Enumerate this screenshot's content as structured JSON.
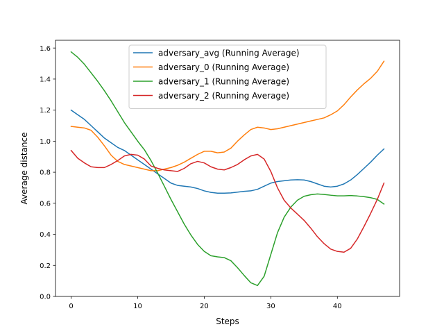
{
  "chart_data": {
    "type": "line",
    "title": "",
    "xlabel": "Steps",
    "ylabel": "Average distance",
    "xlim": [
      -2.35,
      49.35
    ],
    "ylim": [
      0.0,
      1.65
    ],
    "xticks": [
      0,
      10,
      20,
      30,
      40
    ],
    "yticks": [
      0.0,
      0.2,
      0.4,
      0.6,
      0.8,
      1.0,
      1.2,
      1.4,
      1.6
    ],
    "xtick_labels": [
      "0",
      "10",
      "20",
      "30",
      "40"
    ],
    "ytick_labels": [
      "0.0",
      "0.2",
      "0.4",
      "0.6",
      "0.8",
      "1.0",
      "1.2",
      "1.4",
      "1.6"
    ],
    "grid": false,
    "legend_position": "upper center",
    "x": [
      0,
      1,
      2,
      3,
      4,
      5,
      6,
      7,
      8,
      9,
      10,
      11,
      12,
      13,
      14,
      15,
      16,
      17,
      18,
      19,
      20,
      21,
      22,
      23,
      24,
      25,
      26,
      27,
      28,
      29,
      30,
      31,
      32,
      33,
      34,
      35,
      36,
      37,
      38,
      39,
      40,
      41,
      42,
      43,
      44,
      45,
      46,
      47
    ],
    "series": [
      {
        "name": "adversary_avg (Running Average)",
        "color": "#1f77b4",
        "values": [
          1.2,
          1.17,
          1.14,
          1.1,
          1.06,
          1.02,
          0.99,
          0.96,
          0.94,
          0.91,
          0.88,
          0.85,
          0.82,
          0.79,
          0.76,
          0.73,
          0.715,
          0.71,
          0.705,
          0.695,
          0.68,
          0.67,
          0.665,
          0.665,
          0.667,
          0.672,
          0.677,
          0.68,
          0.69,
          0.71,
          0.73,
          0.74,
          0.745,
          0.75,
          0.752,
          0.75,
          0.74,
          0.725,
          0.71,
          0.705,
          0.71,
          0.725,
          0.75,
          0.785,
          0.825,
          0.865,
          0.91,
          0.95
        ]
      },
      {
        "name": "adversary_0 (Running Average)",
        "color": "#ff7f0e",
        "values": [
          1.095,
          1.09,
          1.085,
          1.07,
          1.025,
          0.97,
          0.91,
          0.87,
          0.85,
          0.84,
          0.83,
          0.82,
          0.81,
          0.81,
          0.82,
          0.83,
          0.845,
          0.865,
          0.89,
          0.915,
          0.935,
          0.935,
          0.925,
          0.93,
          0.955,
          1.0,
          1.04,
          1.075,
          1.09,
          1.085,
          1.075,
          1.08,
          1.09,
          1.1,
          1.11,
          1.12,
          1.13,
          1.14,
          1.15,
          1.17,
          1.195,
          1.235,
          1.285,
          1.33,
          1.37,
          1.405,
          1.45,
          1.515
        ]
      },
      {
        "name": "adversary_1 (Running Average)",
        "color": "#2ca02c",
        "values": [
          1.575,
          1.54,
          1.495,
          1.44,
          1.385,
          1.325,
          1.26,
          1.19,
          1.12,
          1.06,
          1.0,
          0.945,
          0.875,
          0.795,
          0.71,
          0.625,
          0.545,
          0.465,
          0.395,
          0.335,
          0.29,
          0.262,
          0.255,
          0.25,
          0.23,
          0.185,
          0.135,
          0.088,
          0.07,
          0.13,
          0.27,
          0.41,
          0.51,
          0.575,
          0.62,
          0.645,
          0.655,
          0.66,
          0.657,
          0.652,
          0.648,
          0.648,
          0.65,
          0.647,
          0.643,
          0.636,
          0.625,
          0.595
        ]
      },
      {
        "name": "adversary_2 (Running Average)",
        "color": "#d62728",
        "values": [
          0.94,
          0.89,
          0.86,
          0.835,
          0.83,
          0.83,
          0.85,
          0.875,
          0.905,
          0.915,
          0.91,
          0.885,
          0.84,
          0.825,
          0.815,
          0.81,
          0.805,
          0.825,
          0.855,
          0.87,
          0.86,
          0.835,
          0.82,
          0.815,
          0.83,
          0.85,
          0.88,
          0.905,
          0.915,
          0.885,
          0.805,
          0.7,
          0.62,
          0.57,
          0.53,
          0.49,
          0.44,
          0.385,
          0.34,
          0.305,
          0.29,
          0.285,
          0.31,
          0.37,
          0.45,
          0.535,
          0.625,
          0.73
        ]
      }
    ]
  }
}
